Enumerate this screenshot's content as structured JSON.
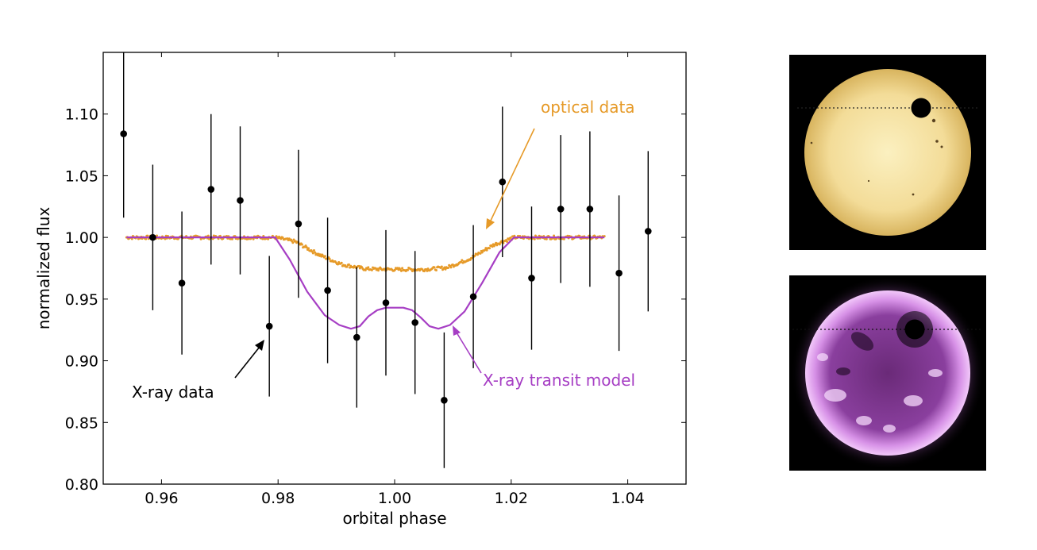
{
  "chart_data": {
    "type": "scatter",
    "xlabel": "orbital phase",
    "ylabel": "normalized flux",
    "xlim": [
      0.95,
      1.05
    ],
    "ylim": [
      0.8,
      1.15
    ],
    "xticks": [
      0.96,
      0.98,
      1.0,
      1.02,
      1.04
    ],
    "xtick_labels": [
      "0.96",
      "0.98",
      "1.00",
      "1.02",
      "1.04"
    ],
    "yticks": [
      0.8,
      0.85,
      0.9,
      0.95,
      1.0,
      1.05,
      1.1
    ],
    "ytick_labels": [
      "0.80",
      "0.85",
      "0.90",
      "0.95",
      "1.00",
      "1.05",
      "1.10"
    ],
    "grid": false,
    "colors": {
      "xray_data": "#000000",
      "optical": "#e69a28",
      "model": "#a63ec4"
    },
    "series": [
      {
        "name": "X-ray data",
        "kind": "points-with-errorbars",
        "x": [
          0.9535,
          0.9585,
          0.9635,
          0.9685,
          0.9735,
          0.9785,
          0.9835,
          0.9885,
          0.9935,
          0.9985,
          1.0035,
          1.0085,
          1.0135,
          1.0185,
          1.0235,
          1.0285,
          1.0335,
          1.0385,
          1.0435
        ],
        "y": [
          1.084,
          1.0,
          0.963,
          1.039,
          1.03,
          0.928,
          1.011,
          0.957,
          0.919,
          0.947,
          0.931,
          0.868,
          0.952,
          1.045,
          0.967,
          1.023,
          1.023,
          0.971,
          1.005
        ],
        "err": [
          0.068,
          0.059,
          0.058,
          0.061,
          0.06,
          0.057,
          0.06,
          0.059,
          0.057,
          0.059,
          0.058,
          0.055,
          0.058,
          0.061,
          0.058,
          0.06,
          0.063,
          0.063,
          0.065
        ]
      },
      {
        "name": "optical data",
        "kind": "dense-points",
        "x": [
          0.954,
          0.9795,
          0.983,
          0.987,
          0.991,
          0.995,
          1.0,
          1.005,
          1.009,
          1.013,
          1.017,
          1.0205,
          1.036
        ],
        "y": [
          1.0,
          1.0,
          0.9965,
          0.986,
          0.978,
          0.9745,
          0.974,
          0.974,
          0.9755,
          0.983,
          0.994,
          1.0,
          1.0
        ]
      },
      {
        "name": "X-ray transit model",
        "kind": "line",
        "x": [
          0.954,
          0.9795,
          0.982,
          0.985,
          0.988,
          0.9905,
          0.9925,
          0.994,
          0.9955,
          0.997,
          0.9985,
          1.0,
          1.0015,
          1.003,
          1.0045,
          1.006,
          1.0075,
          1.0095,
          1.012,
          1.015,
          1.018,
          1.0205,
          1.036
        ],
        "y": [
          1.0,
          1.0,
          0.982,
          0.956,
          0.937,
          0.929,
          0.926,
          0.928,
          0.936,
          0.941,
          0.943,
          0.943,
          0.943,
          0.941,
          0.935,
          0.928,
          0.926,
          0.929,
          0.94,
          0.963,
          0.988,
          1.0,
          1.0
        ]
      }
    ],
    "annotations": [
      {
        "text": "optical data",
        "color": "#e69a28"
      },
      {
        "text": "X-ray data",
        "color": "#000000"
      },
      {
        "text": "X-ray transit model",
        "color": "#a63ec4"
      }
    ]
  }
}
